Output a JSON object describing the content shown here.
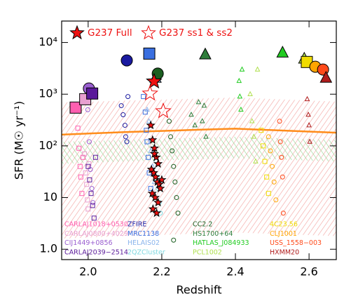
{
  "chart_data": {
    "type": "scatter",
    "x_label": "Redshift",
    "y_label": "SFR (M☉ yr⁻¹)",
    "xlim": [
      1.928,
      2.674
    ],
    "ylim": [
      0.63,
      26000
    ],
    "log_y": true,
    "xticks": [
      {
        "value": 2,
        "label": "2.0"
      },
      2.2,
      2.4,
      2.6
    ],
    "yticks": [
      {
        "value": 1,
        "label": "1.0"
      },
      10,
      {
        "value": 100,
        "label": "10²"
      },
      {
        "value": 1000,
        "label": "10³"
      },
      {
        "value": 10000,
        "label": "10⁴"
      }
    ],
    "bands": [
      {
        "color": "#f2a09c",
        "x": [
          1.928,
          2.1,
          2.3,
          2.4,
          2.674
        ],
        "upper": [
          690,
          750,
          820,
          860,
          720
        ],
        "lower": [
          1.6,
          1.8,
          2.0,
          2.1,
          1.8
        ]
      },
      {
        "color": "#8fd68f",
        "x": [
          1.928,
          2.1,
          2.3,
          2.4,
          2.674
        ],
        "upper": [
          120,
          130,
          145,
          150,
          130
        ],
        "lower": [
          45,
          50,
          55,
          58,
          50
        ]
      }
    ],
    "main_sequence": {
      "color": "#ff8c1a",
      "x": [
        1.928,
        2.1,
        2.3,
        2.4,
        2.674
      ],
      "values": [
        165,
        185,
        205,
        215,
        180
      ]
    },
    "highlight_series": [
      {
        "name": "G237 Full",
        "color": "#ee1111",
        "marker": "star",
        "filled": true,
        "x": [
          2.179
        ],
        "values": [
          1760
        ],
        "members_x": [
          2.17,
          2.175,
          2.18,
          2.185,
          2.19,
          2.172,
          2.178,
          2.183,
          2.188,
          2.193,
          2.196,
          2.174,
          2.182,
          2.19,
          2.176,
          2.186,
          2.2,
          2.18
        ],
        "members_values": [
          250,
          130,
          90,
          60,
          45,
          35,
          30,
          25,
          20,
          18,
          15,
          12,
          10,
          8,
          6,
          5,
          22,
          70
        ]
      },
      {
        "name": "G237 ss1 & ss2",
        "color": "#ee1111",
        "marker": "star",
        "filled": false,
        "x": [
          2.168,
          2.204
        ],
        "values": [
          1030,
          470
        ]
      }
    ],
    "series": [
      {
        "name": "CARLAJ1018+0530",
        "color": "#ff5fb0",
        "marker": "square",
        "x": [
          1.966
        ],
        "values": [
          550
        ],
        "members_x": [
          1.972,
          1.975,
          1.978,
          1.98,
          1.983,
          1.986
        ],
        "members_values": [
          220,
          90,
          40,
          25,
          12,
          60
        ]
      },
      {
        "name": "CARLAJ0800+4029",
        "color": "#e8a0d0",
        "marker": "square",
        "x": [
          1.992
        ],
        "values": [
          800
        ],
        "members_x": [
          1.99,
          1.993,
          1.996,
          1.998,
          2.0,
          2.002
        ],
        "members_values": [
          70,
          30,
          18,
          9,
          6,
          45
        ]
      },
      {
        "name": "CIJ1449+0856",
        "color": "#9a5fd0",
        "marker": "circle",
        "x": [
          2.002
        ],
        "values": [
          1290
        ],
        "members_x": [
          1.995,
          1.999,
          2.003,
          2.006,
          2.01,
          2.013
        ],
        "members_values": [
          900,
          500,
          120,
          35,
          15,
          8
        ]
      },
      {
        "name": "CARLAJ2039−2514",
        "color": "#5a1a9a",
        "marker": "square",
        "x": [
          2.011
        ],
        "values": [
          1030
        ],
        "members_x": [
          2.0,
          2.004,
          2.008,
          2.012,
          2.016,
          2.02
        ],
        "members_values": [
          40,
          22,
          12,
          7,
          4,
          60
        ]
      },
      {
        "name": "ZFIRE",
        "color": "#1a1aa0",
        "marker": "circle",
        "x": [
          2.105
        ],
        "values": [
          4500
        ],
        "members_x": [
          2.09,
          2.095,
          2.1,
          2.102,
          2.105,
          2.108
        ],
        "members_values": [
          600,
          400,
          250,
          150,
          120,
          900
        ]
      },
      {
        "name": "MRC1138",
        "color": "#3a6fe0",
        "marker": "square",
        "x": [
          2.166
        ],
        "values": [
          6100
        ],
        "members_x": [
          2.15,
          2.155,
          2.158,
          2.16,
          2.163,
          2.166,
          2.17
        ],
        "members_values": [
          900,
          450,
          200,
          120,
          60,
          30,
          15
        ]
      },
      {
        "name": "HELAIS02",
        "color": "#8ab4ec",
        "marker": "triangle",
        "x": [
          2.183
        ],
        "values": [
          2050
        ],
        "members_x": [
          2.16,
          2.165,
          2.17,
          2.175,
          2.18
        ],
        "members_values": [
          500,
          300,
          80,
          40,
          20
        ]
      },
      {
        "name": "2QZCluster",
        "color": "#7fd8e0",
        "marker": "circle",
        "x": [],
        "values": [],
        "members_x": [
          2.185,
          2.188,
          2.19,
          2.193,
          2.196
        ],
        "members_values": [
          50,
          25,
          15,
          8,
          5
        ]
      },
      {
        "name": "CC2.2",
        "color": "#1b5e20",
        "marker": "circle",
        "x": [
          2.189
        ],
        "values": [
          2500
        ],
        "members_x": [
          2.22,
          2.224,
          2.228,
          2.232,
          2.236,
          2.24,
          2.244,
          2.232
        ],
        "members_values": [
          300,
          150,
          80,
          40,
          20,
          10,
          5,
          1.5
        ]
      },
      {
        "name": "HS1700+64",
        "color": "#2e7d3a",
        "marker": "triangle",
        "x": [
          2.318
        ],
        "values": [
          5800
        ],
        "members_x": [
          2.28,
          2.29,
          2.3,
          2.31,
          2.315,
          2.32
        ],
        "members_values": [
          400,
          250,
          700,
          300,
          600,
          150
        ]
      },
      {
        "name": "HATLAS_J084933",
        "color": "#22cc22",
        "marker": "triangle",
        "x": [
          2.528
        ],
        "values": [
          6300
        ],
        "members_x": [
          2.41,
          2.412,
          2.415,
          2.418
        ],
        "members_values": [
          1800,
          900,
          500,
          3000
        ]
      },
      {
        "name": "PCL1002",
        "color": "#b0e050",
        "marker": "triangle",
        "x": [
          2.587
        ],
        "values": [
          4800
        ],
        "members_x": [
          2.44,
          2.445,
          2.45,
          2.455,
          2.46
        ],
        "members_values": [
          1000,
          300,
          150,
          50,
          3000
        ]
      },
      {
        "name": "4C23.56",
        "color": "#f0dc00",
        "marker": "square",
        "x": [
          2.594
        ],
        "values": [
          4200
        ],
        "members_x": [
          2.47,
          2.475,
          2.48,
          2.485,
          2.49
        ],
        "members_values": [
          200,
          100,
          50,
          25,
          12
        ]
      },
      {
        "name": "CLJ1001",
        "color": "#ffa500",
        "marker": "circle",
        "x": [
          2.617
        ],
        "values": [
          3400
        ],
        "members_x": [
          2.49,
          2.495,
          2.5,
          2.505,
          2.51
        ],
        "members_values": [
          150,
          80,
          40,
          20,
          9
        ]
      },
      {
        "name": "USS_1558−003",
        "color": "#ff4a1a",
        "marker": "circle",
        "x": [
          2.638
        ],
        "values": [
          3000
        ],
        "members_x": [
          2.52,
          2.522,
          2.525,
          2.528,
          2.53
        ],
        "members_values": [
          300,
          120,
          60,
          25,
          5
        ]
      },
      {
        "name": "HXMM20",
        "color": "#b01c1c",
        "marker": "triangle",
        "x": [
          2.646
        ],
        "values": [
          2050
        ],
        "members_x": [
          2.595,
          2.598,
          2.6,
          2.602
        ],
        "members_values": [
          800,
          400,
          250,
          120
        ]
      }
    ]
  }
}
